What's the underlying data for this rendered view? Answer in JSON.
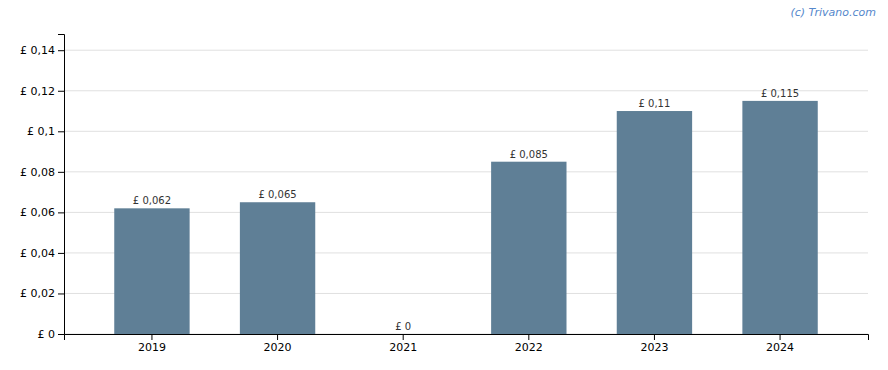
{
  "chart_data": {
    "type": "bar",
    "categories": [
      "2019",
      "2020",
      "2021",
      "2022",
      "2023",
      "2024"
    ],
    "values": [
      0.062,
      0.065,
      0.0,
      0.085,
      0.11,
      0.115
    ],
    "value_labels": [
      "£ 0,062",
      "£ 0,065",
      "£ 0",
      "£ 0,085",
      "£ 0,11",
      "£ 0,115"
    ],
    "data_labels": true,
    "color": "#5f7f96",
    "ylim": [
      0,
      0.148
    ],
    "yticks": [
      {
        "value": 0,
        "label": "£ 0"
      },
      {
        "value": 0.02,
        "label": "£ 0,02"
      },
      {
        "value": 0.04,
        "label": "£ 0,04"
      },
      {
        "value": 0.06,
        "label": "£ 0,06"
      },
      {
        "value": 0.08,
        "label": "£ 0,08"
      },
      {
        "value": 0.1,
        "label": "£ 0,1"
      },
      {
        "value": 0.12,
        "label": "£ 0,12"
      },
      {
        "value": 0.14,
        "label": "£ 0,14"
      }
    ],
    "grid": true,
    "annotations": [
      "(c) Trivano.com"
    ]
  }
}
